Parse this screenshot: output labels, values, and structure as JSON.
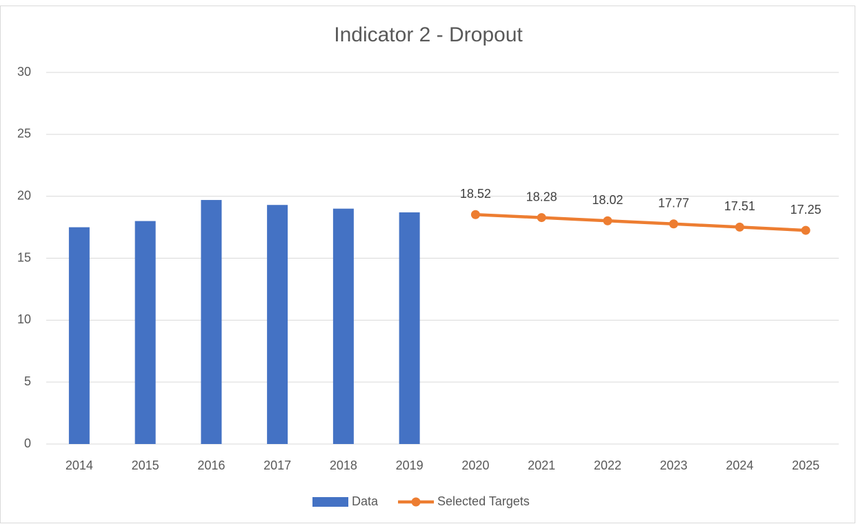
{
  "chart_data": {
    "type": "bar",
    "title": "Indicator 2 - Dropout",
    "categories": [
      "2014",
      "2015",
      "2016",
      "2017",
      "2018",
      "2019",
      "2020",
      "2021",
      "2022",
      "2023",
      "2024",
      "2025"
    ],
    "series": [
      {
        "name": "Data",
        "type": "bar",
        "color": "#4472c4",
        "values": [
          17.5,
          18.0,
          19.7,
          19.3,
          19.0,
          18.7,
          null,
          null,
          null,
          null,
          null,
          null
        ]
      },
      {
        "name": "Selected Targets",
        "type": "line",
        "color": "#ed7d31",
        "values": [
          null,
          null,
          null,
          null,
          null,
          null,
          18.52,
          18.28,
          18.02,
          17.77,
          17.51,
          17.25
        ]
      }
    ],
    "ylim": [
      0,
      30
    ],
    "yticks": [
      0,
      5,
      10,
      15,
      20,
      25,
      30
    ],
    "grid": true,
    "legend": "bottom"
  }
}
